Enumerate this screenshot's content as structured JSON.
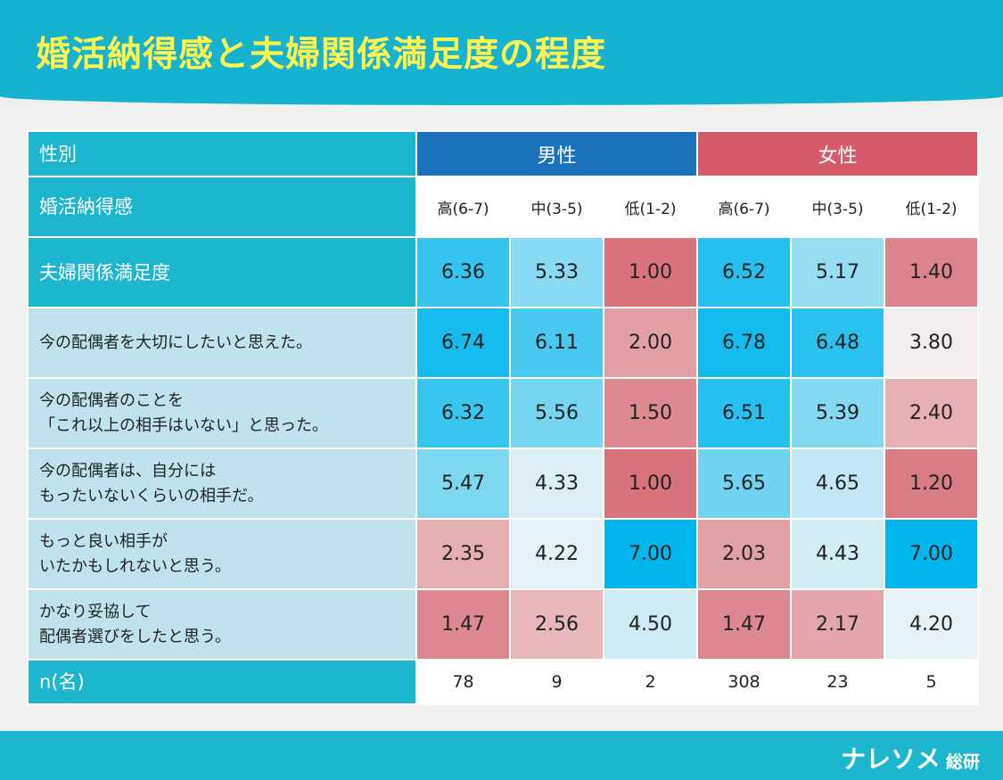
{
  "title": "婚活納得感と夫婦関係満足度の程度",
  "brand": {
    "name": "ナレソメ",
    "suffix": "総研"
  },
  "colors": {
    "male_header": "#1c71bd",
    "female_header": "#d75a6c",
    "label_teal": "#1eb5cf",
    "label_light": "#bfe3ec",
    "scale_low": "#d8737d",
    "scale_mid": "#f6f6f6",
    "scale_high": "#00b6ec"
  },
  "chart_data": {
    "type": "table",
    "title": "婚活納得感と夫婦関係満足度の程度",
    "header_label": "性別",
    "subheader_label": "婚活納得感",
    "groups": [
      "男性",
      "女性"
    ],
    "columns": [
      "高(6-7)",
      "中(3-5)",
      "低(1-2)",
      "高(6-7)",
      "中(3-5)",
      "低(1-2)"
    ],
    "scale": [
      1,
      7
    ],
    "rows": [
      {
        "label": [
          "夫婦関係満足度"
        ],
        "style": "teal",
        "values": [
          6.36,
          5.33,
          1.0,
          6.52,
          5.17,
          1.4
        ]
      },
      {
        "label": [
          "今の配偶者を大切にしたいと思えた。"
        ],
        "values": [
          6.74,
          6.11,
          2.0,
          6.78,
          6.48,
          3.8
        ]
      },
      {
        "label": [
          "今の配偶者のことを",
          "「これ以上の相手はいない」と思った。"
        ],
        "values": [
          6.32,
          5.56,
          1.5,
          6.51,
          5.39,
          2.4
        ]
      },
      {
        "label": [
          "今の配偶者は、自分には",
          "もったいないくらいの相手だ。"
        ],
        "values": [
          5.47,
          4.33,
          1.0,
          5.65,
          4.65,
          1.2
        ]
      },
      {
        "label": [
          "もっと良い相手が",
          "いたかもしれないと思う。"
        ],
        "values": [
          2.35,
          4.22,
          7.0,
          2.03,
          4.43,
          7.0
        ]
      },
      {
        "label": [
          "かなり妥協して",
          "配偶者選びをしたと思う。"
        ],
        "values": [
          1.47,
          2.56,
          4.5,
          1.47,
          2.17,
          4.2
        ]
      }
    ],
    "n_label": "n(名)",
    "n": [
      78,
      9,
      2,
      308,
      23,
      5
    ]
  }
}
